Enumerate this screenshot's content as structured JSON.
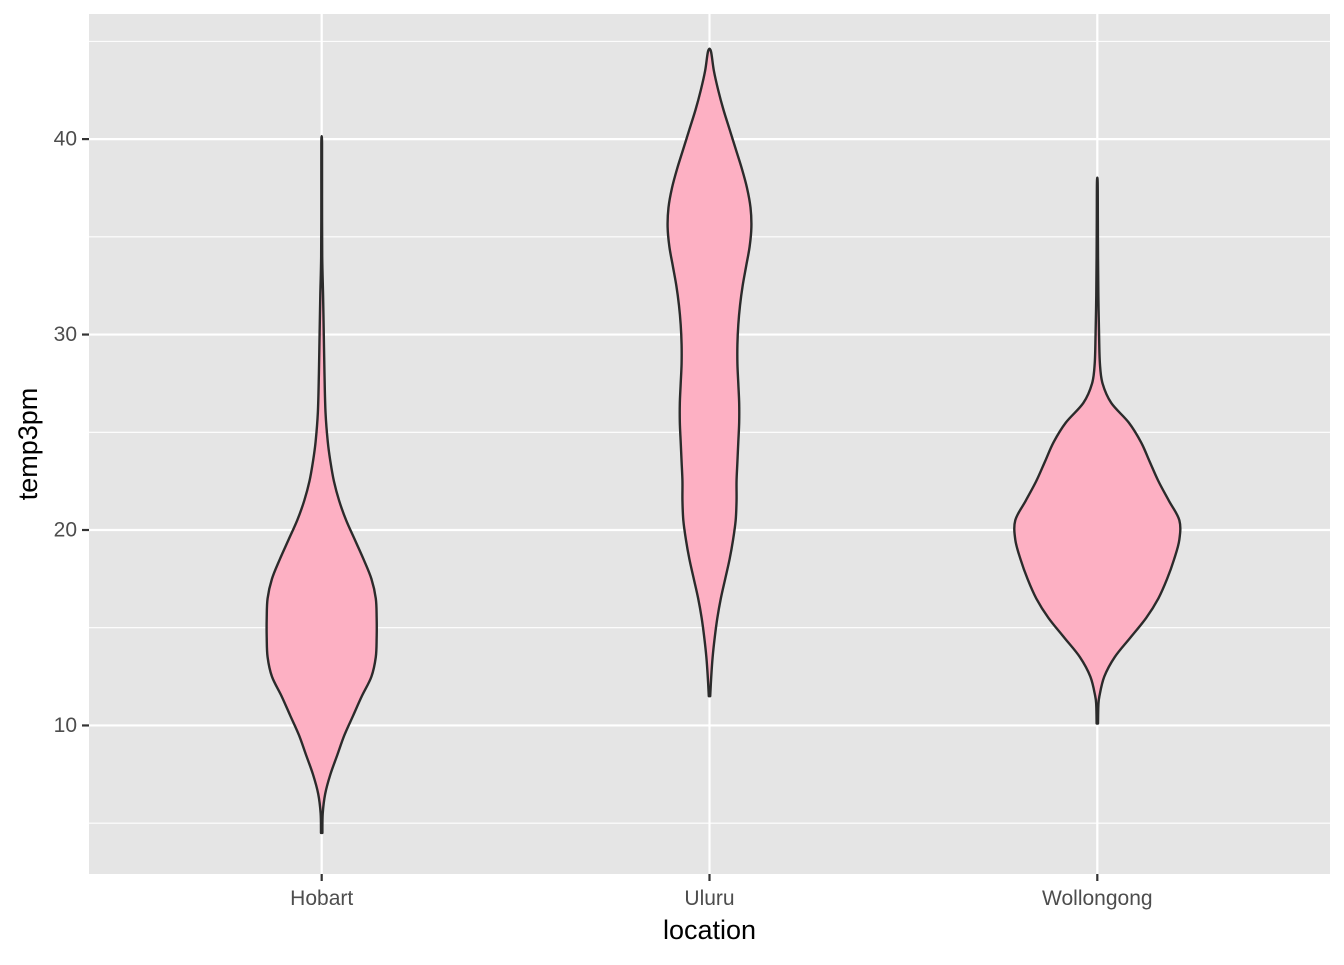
{
  "chart_data": {
    "type": "violin",
    "xlabel": "location",
    "ylabel": "temp3pm",
    "categories": [
      "Hobart",
      "Uluru",
      "Wollongong"
    ],
    "ylim": [
      2.4,
      46.4
    ],
    "y_ticks": [
      10,
      20,
      30,
      40
    ],
    "grid": true,
    "legend": "none",
    "colors": {
      "panel_background": "#E5E5E5",
      "grid": "#FFFFFF",
      "violin_fill": "#FDB0C3",
      "violin_outline": "#2B2B2B",
      "tick_label": "#4D4D4D",
      "axis_title": "#000000"
    },
    "series": [
      {
        "category": "Hobart",
        "min": 4.5,
        "max": 39.8,
        "density_profile": [
          {
            "y": 4.5,
            "half_width": 0.004
          },
          {
            "y": 5.5,
            "half_width": 0.006
          },
          {
            "y": 6.5,
            "half_width": 0.02
          },
          {
            "y": 7.5,
            "half_width": 0.05
          },
          {
            "y": 8.5,
            "half_width": 0.09
          },
          {
            "y": 9.5,
            "half_width": 0.13
          },
          {
            "y": 10.5,
            "half_width": 0.18
          },
          {
            "y": 11.5,
            "half_width": 0.23
          },
          {
            "y": 12.5,
            "half_width": 0.285
          },
          {
            "y": 13.5,
            "half_width": 0.31
          },
          {
            "y": 14.5,
            "half_width": 0.315
          },
          {
            "y": 15.5,
            "half_width": 0.315
          },
          {
            "y": 16.5,
            "half_width": 0.31
          },
          {
            "y": 17.5,
            "half_width": 0.285
          },
          {
            "y": 18.5,
            "half_width": 0.24
          },
          {
            "y": 19.5,
            "half_width": 0.19
          },
          {
            "y": 20.5,
            "half_width": 0.14
          },
          {
            "y": 21.5,
            "half_width": 0.1
          },
          {
            "y": 22.5,
            "half_width": 0.07
          },
          {
            "y": 23.5,
            "half_width": 0.05
          },
          {
            "y": 24.5,
            "half_width": 0.035
          },
          {
            "y": 26.0,
            "half_width": 0.022
          },
          {
            "y": 28.0,
            "half_width": 0.016
          },
          {
            "y": 30.0,
            "half_width": 0.012
          },
          {
            "y": 32.0,
            "half_width": 0.008
          },
          {
            "y": 34.0,
            "half_width": 0.003
          },
          {
            "y": 37.0,
            "half_width": 0.002
          },
          {
            "y": 39.8,
            "half_width": 0.002
          }
        ]
      },
      {
        "category": "Uluru",
        "min": 11.5,
        "max": 44.5,
        "density_profile": [
          {
            "y": 11.5,
            "half_width": 0.004
          },
          {
            "y": 12.5,
            "half_width": 0.01
          },
          {
            "y": 13.5,
            "half_width": 0.018
          },
          {
            "y": 14.5,
            "half_width": 0.03
          },
          {
            "y": 15.5,
            "half_width": 0.045
          },
          {
            "y": 16.5,
            "half_width": 0.065
          },
          {
            "y": 17.5,
            "half_width": 0.09
          },
          {
            "y": 18.5,
            "half_width": 0.115
          },
          {
            "y": 19.5,
            "half_width": 0.135
          },
          {
            "y": 20.5,
            "half_width": 0.15
          },
          {
            "y": 21.5,
            "half_width": 0.155
          },
          {
            "y": 22.5,
            "half_width": 0.155
          },
          {
            "y": 23.5,
            "half_width": 0.16
          },
          {
            "y": 24.5,
            "half_width": 0.165
          },
          {
            "y": 25.5,
            "half_width": 0.17
          },
          {
            "y": 26.5,
            "half_width": 0.17
          },
          {
            "y": 27.5,
            "half_width": 0.165
          },
          {
            "y": 28.5,
            "half_width": 0.16
          },
          {
            "y": 29.5,
            "half_width": 0.16
          },
          {
            "y": 30.5,
            "half_width": 0.165
          },
          {
            "y": 31.5,
            "half_width": 0.175
          },
          {
            "y": 32.5,
            "half_width": 0.19
          },
          {
            "y": 33.5,
            "half_width": 0.21
          },
          {
            "y": 34.5,
            "half_width": 0.23
          },
          {
            "y": 35.5,
            "half_width": 0.24
          },
          {
            "y": 36.5,
            "half_width": 0.235
          },
          {
            "y": 37.5,
            "half_width": 0.215
          },
          {
            "y": 38.5,
            "half_width": 0.185
          },
          {
            "y": 39.5,
            "half_width": 0.15
          },
          {
            "y": 40.5,
            "half_width": 0.115
          },
          {
            "y": 41.5,
            "half_width": 0.08
          },
          {
            "y": 42.5,
            "half_width": 0.05
          },
          {
            "y": 43.5,
            "half_width": 0.025
          },
          {
            "y": 44.5,
            "half_width": 0.008
          }
        ]
      },
      {
        "category": "Wollongong",
        "min": 10.1,
        "max": 37.8,
        "density_profile": [
          {
            "y": 10.1,
            "half_width": 0.004
          },
          {
            "y": 11.0,
            "half_width": 0.006
          },
          {
            "y": 11.5,
            "half_width": 0.012
          },
          {
            "y": 12.5,
            "half_width": 0.04
          },
          {
            "y": 13.5,
            "half_width": 0.1
          },
          {
            "y": 14.5,
            "half_width": 0.19
          },
          {
            "y": 15.5,
            "half_width": 0.28
          },
          {
            "y": 16.5,
            "half_width": 0.35
          },
          {
            "y": 17.5,
            "half_width": 0.4
          },
          {
            "y": 18.5,
            "half_width": 0.44
          },
          {
            "y": 19.5,
            "half_width": 0.47
          },
          {
            "y": 20.5,
            "half_width": 0.47
          },
          {
            "y": 21.5,
            "half_width": 0.41
          },
          {
            "y": 22.5,
            "half_width": 0.35
          },
          {
            "y": 23.5,
            "half_width": 0.3
          },
          {
            "y": 24.5,
            "half_width": 0.25
          },
          {
            "y": 25.5,
            "half_width": 0.18
          },
          {
            "y": 26.5,
            "half_width": 0.08
          },
          {
            "y": 27.5,
            "half_width": 0.03
          },
          {
            "y": 28.5,
            "half_width": 0.015
          },
          {
            "y": 30.0,
            "half_width": 0.01
          },
          {
            "y": 32.0,
            "half_width": 0.006
          },
          {
            "y": 34.0,
            "half_width": 0.004
          },
          {
            "y": 36.0,
            "half_width": 0.003
          },
          {
            "y": 37.8,
            "half_width": 0.002
          }
        ]
      }
    ]
  }
}
